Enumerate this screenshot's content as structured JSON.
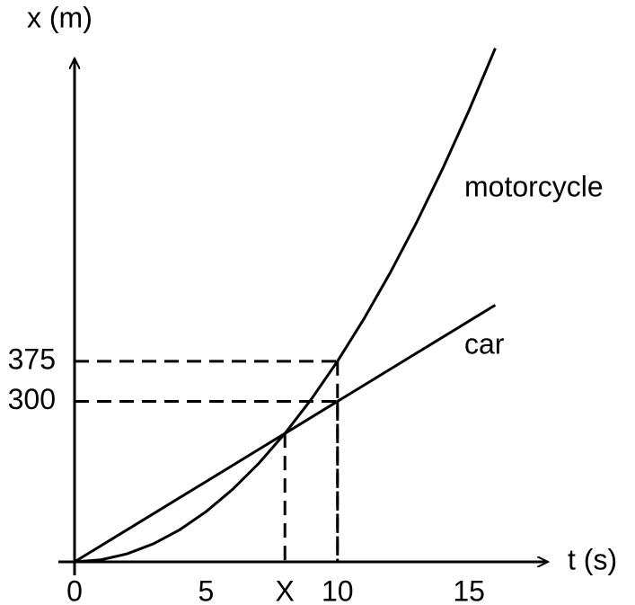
{
  "chart_data": {
    "type": "line",
    "xlabel": "t (s)",
    "ylabel": "x (m)",
    "x": [
      0,
      1,
      2,
      3,
      4,
      5,
      6,
      7,
      8,
      9,
      10,
      11,
      12,
      13,
      14,
      15,
      16
    ],
    "series": [
      {
        "name": "motorcycle",
        "color": "#000000",
        "values": [
          0,
          3.75,
          15,
          33.75,
          60,
          93.75,
          135,
          183.75,
          240,
          303.75,
          375,
          453.75,
          540,
          633.75,
          735,
          843.75,
          960
        ]
      },
      {
        "name": "car",
        "color": "#000000",
        "values": [
          0,
          30,
          60,
          90,
          120,
          150,
          180,
          210,
          240,
          270,
          300,
          330,
          360,
          390,
          420,
          450,
          480
        ]
      }
    ],
    "xlim": [
      0,
      18
    ],
    "ylim": [
      0,
      941
    ],
    "xticks": [
      0,
      5,
      {
        "value": 8,
        "label": "X"
      },
      10,
      15
    ],
    "yticks": [
      300,
      375
    ],
    "dashed": [
      {
        "x": 10,
        "y": 375
      },
      {
        "x": 10,
        "y": 300
      },
      {
        "x": 8,
        "y": 240
      }
    ]
  }
}
